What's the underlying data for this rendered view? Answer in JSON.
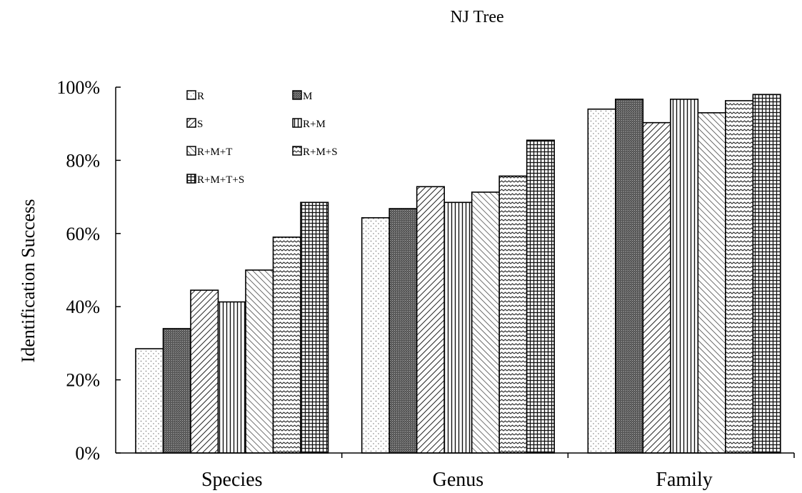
{
  "chart_data": {
    "type": "bar",
    "title": "NJ Tree",
    "xlabel": "",
    "ylabel": "Identification Success",
    "ylim": [
      0,
      1
    ],
    "yticks": [
      {
        "value": 0,
        "label": "0%"
      },
      {
        "value": 0.2,
        "label": "20%"
      },
      {
        "value": 0.4,
        "label": "40%"
      },
      {
        "value": 0.6,
        "label": "60%"
      },
      {
        "value": 0.8,
        "label": "80%"
      },
      {
        "value": 1.0,
        "label": "100%"
      }
    ],
    "grid": false,
    "legend_position": "top-left",
    "categories": [
      "Species",
      "Genus",
      "Family"
    ],
    "series": [
      {
        "name": "R",
        "pattern": "dots",
        "values": [
          0.285,
          0.643,
          0.94
        ]
      },
      {
        "name": "M",
        "pattern": "dense",
        "values": [
          0.34,
          0.668,
          0.967
        ]
      },
      {
        "name": "S",
        "pattern": "diag-right",
        "values": [
          0.445,
          0.728,
          0.903
        ]
      },
      {
        "name": "R+M",
        "pattern": "vertical",
        "values": [
          0.413,
          0.685,
          0.967
        ]
      },
      {
        "name": "R+M+T",
        "pattern": "diag-left",
        "values": [
          0.5,
          0.713,
          0.93
        ]
      },
      {
        "name": "R+M+S",
        "pattern": "wave",
        "values": [
          0.59,
          0.757,
          0.963
        ]
      },
      {
        "name": "R+M+T+S",
        "pattern": "grid",
        "values": [
          0.685,
          0.855,
          0.98
        ]
      }
    ]
  }
}
